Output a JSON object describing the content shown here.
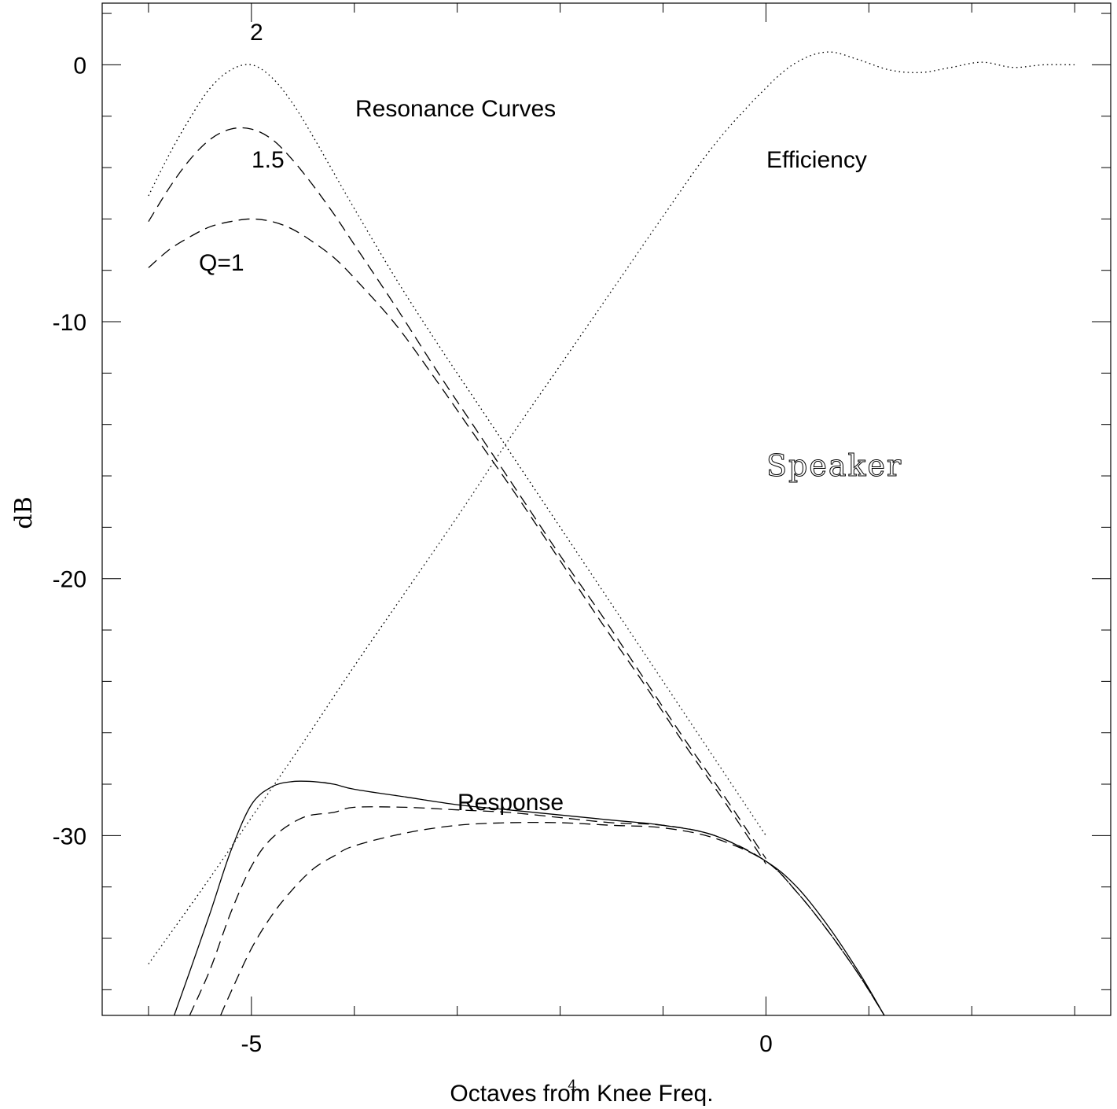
{
  "chart_data": {
    "type": "line",
    "xlabel": "Octaves from Knee Freq.",
    "ylabel": "dB",
    "xlim": [
      -6.45,
      3.35
    ],
    "ylim": [
      -37.0,
      2.4
    ],
    "x_ticks": [
      -5,
      0
    ],
    "x_tick_labels": [
      "-5",
      "0"
    ],
    "y_ticks": [
      0,
      -10,
      -20,
      -30
    ],
    "y_tick_labels": [
      "0",
      "-10",
      "-20",
      "-30"
    ],
    "x_minor_step": 1,
    "y_minor_step": 2,
    "grid": false,
    "annotations": {
      "resonance_title": "Resonance Curves",
      "efficiency": "Efficiency",
      "response": "Response",
      "speaker": "Speaker",
      "q2": "2",
      "q15": "1.5",
      "q1": "Q=1"
    },
    "page_number": "4",
    "series": [
      {
        "style": "dotted",
        "x": [
          -6.0,
          -5.8,
          -5.6,
          -5.4,
          -5.2,
          -5.0,
          -4.8,
          -4.6,
          -4.4,
          -4.2,
          -4.0,
          -3.6,
          -3.2,
          -2.8,
          -2.4,
          -2.0,
          -1.6,
          -1.2,
          -0.8,
          -0.4,
          0.0
        ],
        "y": [
          -5.1,
          -3.5,
          -2.1,
          -0.9,
          -0.2,
          0.0,
          -0.5,
          -1.5,
          -2.8,
          -4.2,
          -5.6,
          -8.3,
          -10.8,
          -13.2,
          -15.6,
          -18.0,
          -20.4,
          -22.8,
          -25.2,
          -27.6,
          -30.0
        ]
      },
      {
        "style": "dashed",
        "x": [
          -6.0,
          -5.8,
          -5.6,
          -5.4,
          -5.2,
          -5.0,
          -4.8,
          -4.6,
          -4.4,
          -4.2,
          -4.0,
          -3.6,
          -3.2,
          -2.8,
          -2.4,
          -2.0,
          -1.6,
          -1.2,
          -0.8,
          -0.4,
          0.0
        ],
        "y": [
          -6.1,
          -4.8,
          -3.7,
          -2.9,
          -2.5,
          -2.5,
          -2.9,
          -3.7,
          -4.7,
          -5.8,
          -7.0,
          -9.4,
          -11.9,
          -14.3,
          -16.7,
          -19.1,
          -21.4,
          -23.8,
          -26.2,
          -28.5,
          -30.9
        ]
      },
      {
        "style": "dashed",
        "x": [
          -6.0,
          -5.8,
          -5.6,
          -5.4,
          -5.2,
          -5.0,
          -4.8,
          -4.6,
          -4.4,
          -4.2,
          -4.0,
          -3.6,
          -3.2,
          -2.8,
          -2.4,
          -2.0,
          -1.6,
          -1.2,
          -0.8,
          -0.4,
          0.0
        ],
        "y": [
          -7.9,
          -7.2,
          -6.7,
          -6.3,
          -6.1,
          -6.0,
          -6.1,
          -6.4,
          -6.9,
          -7.5,
          -8.3,
          -10.1,
          -12.3,
          -14.6,
          -16.9,
          -19.3,
          -21.7,
          -24.0,
          -26.4,
          -28.7,
          -31.1
        ]
      },
      {
        "name": "Efficiency",
        "style": "dotted",
        "x": [
          -6.0,
          -5.5,
          -5.0,
          -4.5,
          -4.0,
          -3.5,
          -3.0,
          -2.5,
          -2.0,
          -1.5,
          -1.0,
          -0.5,
          0.0,
          0.3,
          0.6,
          0.9,
          1.2,
          1.5,
          1.8,
          2.1,
          2.4,
          2.7,
          3.0
        ],
        "y": [
          -35.0,
          -32.2,
          -29.3,
          -26.4,
          -23.4,
          -20.5,
          -17.6,
          -14.6,
          -11.7,
          -8.8,
          -5.9,
          -3.1,
          -0.9,
          0.1,
          0.5,
          0.2,
          -0.2,
          -0.3,
          -0.1,
          0.1,
          -0.1,
          0.0,
          0.0
        ]
      },
      {
        "name": "Response",
        "style": "solid",
        "x": [
          -5.75,
          -5.6,
          -5.4,
          -5.2,
          -5.0,
          -4.8,
          -4.6,
          -4.4,
          -4.2,
          -4.0,
          -3.5,
          -3.0,
          -2.5,
          -2.0,
          -1.5,
          -1.0,
          -0.5,
          0.0,
          0.3,
          0.6,
          0.9,
          1.15
        ],
        "y": [
          -37.0,
          -35.3,
          -33.0,
          -30.6,
          -28.8,
          -28.1,
          -27.9,
          -27.9,
          -28.0,
          -28.2,
          -28.5,
          -28.8,
          -29.0,
          -29.2,
          -29.4,
          -29.6,
          -30.0,
          -31.0,
          -32.0,
          -33.5,
          -35.3,
          -37.0
        ]
      },
      {
        "style": "dashed",
        "x": [
          -5.6,
          -5.4,
          -5.2,
          -5.0,
          -4.8,
          -4.5,
          -4.2,
          -4.0,
          -3.5,
          -3.0,
          -2.5,
          -2.0,
          -1.5,
          -1.0,
          -0.5,
          0.0,
          0.3,
          0.6,
          0.9,
          1.15
        ],
        "y": [
          -37.0,
          -35.2,
          -33.0,
          -31.2,
          -30.1,
          -29.3,
          -29.1,
          -28.9,
          -28.9,
          -29.0,
          -29.1,
          -29.3,
          -29.5,
          -29.6,
          -30.0,
          -31.0,
          -32.2,
          -33.7,
          -35.4,
          -37.0
        ]
      },
      {
        "style": "dashed",
        "x": [
          -5.3,
          -5.2,
          -5.0,
          -4.8,
          -4.6,
          -4.4,
          -4.2,
          -4.0,
          -3.5,
          -3.0,
          -2.5,
          -2.0,
          -1.5,
          -1.0,
          -0.5,
          0.0,
          0.3,
          0.6,
          0.9,
          1.15
        ],
        "y": [
          -37.0,
          -36.1,
          -34.4,
          -33.1,
          -32.1,
          -31.3,
          -30.8,
          -30.4,
          -29.9,
          -29.6,
          -29.5,
          -29.5,
          -29.6,
          -29.7,
          -30.1,
          -31.0,
          -32.2,
          -33.7,
          -35.4,
          -37.0
        ]
      }
    ]
  }
}
